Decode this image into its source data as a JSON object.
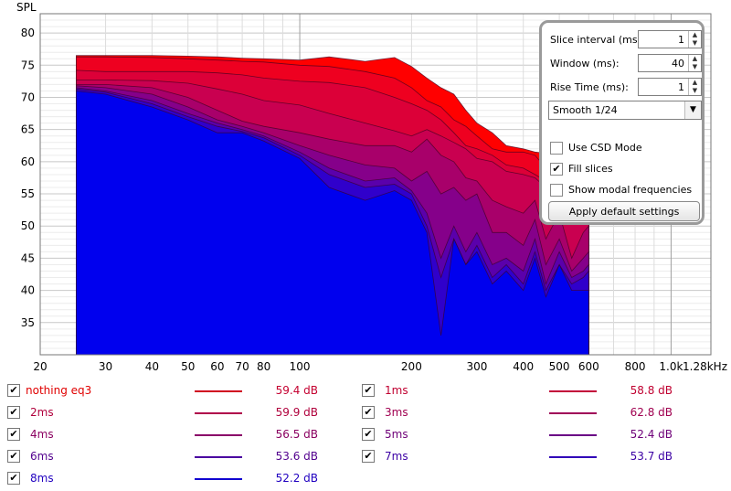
{
  "chart_data": {
    "type": "area",
    "ylabel": "SPL",
    "xlabel": "",
    "xscale": "log",
    "xlim": [
      20,
      1280
    ],
    "ylim": [
      30,
      83
    ],
    "grid": true,
    "x_ticks": [
      {
        "v": 20,
        "label": "20"
      },
      {
        "v": 30,
        "label": "30"
      },
      {
        "v": 40,
        "label": "40"
      },
      {
        "v": 50,
        "label": "50"
      },
      {
        "v": 60,
        "label": "60"
      },
      {
        "v": 70,
        "label": "70"
      },
      {
        "v": 80,
        "label": "80"
      },
      {
        "v": 100,
        "label": "100"
      },
      {
        "v": 200,
        "label": "200"
      },
      {
        "v": 300,
        "label": "300"
      },
      {
        "v": 400,
        "label": "400"
      },
      {
        "v": 500,
        "label": "500"
      },
      {
        "v": 600,
        "label": "600"
      },
      {
        "v": 800,
        "label": "800"
      },
      {
        "v": 1000,
        "label": "1.0k"
      },
      {
        "v": 1280,
        "label": "1.28kHz"
      }
    ],
    "y_ticks": [
      35,
      40,
      45,
      50,
      55,
      60,
      65,
      70,
      75,
      80
    ],
    "x": [
      25,
      30,
      40,
      50,
      60,
      70,
      80,
      100,
      120,
      150,
      180,
      200,
      220,
      240,
      260,
      280,
      300,
      330,
      360,
      400,
      430,
      460,
      500,
      540,
      580,
      600
    ],
    "series": [
      {
        "name": "nothing eq3",
        "color": "#ff0000",
        "values": [
          76.5,
          76.5,
          76.5,
          76.4,
          76.3,
          76.1,
          76,
          75.8,
          76.3,
          75.6,
          76.2,
          74.8,
          73,
          71.5,
          70.5,
          68,
          66,
          64.5,
          62.5,
          62,
          61.5,
          61.3,
          62.2,
          61.8,
          62,
          62
        ]
      },
      {
        "name": "1ms",
        "color": "#ee0020",
        "values": [
          76.3,
          76.3,
          76.2,
          76,
          75.8,
          75.6,
          75.5,
          75,
          74.8,
          74,
          73,
          71.5,
          69.5,
          68.5,
          66.5,
          65.5,
          64,
          62,
          61.5,
          61.5,
          61,
          59,
          62,
          57,
          61,
          61
        ]
      },
      {
        "name": "2ms",
        "color": "#dc0038",
        "values": [
          74.2,
          74,
          74,
          74,
          73.8,
          73.5,
          73,
          72.5,
          72.3,
          71.5,
          70,
          69,
          68,
          66.5,
          64.5,
          62.5,
          62,
          61,
          59.5,
          59,
          58,
          57,
          58.5,
          54,
          58.5,
          58
        ]
      },
      {
        "name": "3ms",
        "color": "#c90050",
        "values": [
          72.7,
          72.7,
          72.6,
          72.2,
          71.3,
          70.5,
          69.5,
          68.8,
          67.5,
          66,
          64.8,
          64,
          65,
          64,
          63,
          62,
          60.5,
          60,
          58.5,
          58,
          57.5,
          56,
          57,
          53,
          56.5,
          56
        ]
      },
      {
        "name": "4ms",
        "color": "#a8006a",
        "values": [
          72,
          72,
          71.5,
          70,
          68,
          66.3,
          65.5,
          64.5,
          63.5,
          62.5,
          62.5,
          61.5,
          63.5,
          61,
          60,
          57.5,
          57,
          54,
          53,
          52,
          54,
          48,
          52,
          45,
          49,
          50
        ]
      },
      {
        "name": "5ms",
        "color": "#85008a",
        "values": [
          71.8,
          71.5,
          70.5,
          68.5,
          66.5,
          65.5,
          64.5,
          62.5,
          61,
          59.5,
          59,
          57,
          58.5,
          55,
          56,
          54,
          55,
          49,
          49,
          47,
          51,
          44,
          48,
          43,
          45,
          46
        ]
      },
      {
        "name": "6ms",
        "color": "#5a00ab",
        "values": [
          71.5,
          71,
          69.5,
          67.5,
          66,
          65,
          64,
          61.5,
          59,
          57,
          57.5,
          55.5,
          52,
          45,
          50,
          46,
          49,
          44,
          45,
          43,
          48,
          41,
          46,
          42,
          43,
          44
        ]
      },
      {
        "name": "7ms",
        "color": "#3000cb",
        "values": [
          71.3,
          70.8,
          69,
          67,
          65.5,
          64.7,
          63.7,
          61,
          58,
          56,
          56.5,
          55,
          50,
          42,
          48,
          44,
          47,
          42,
          44,
          41,
          46,
          40,
          44,
          41,
          42,
          43
        ]
      },
      {
        "name": "8ms",
        "color": "#0000ee",
        "values": [
          71,
          70.5,
          68.5,
          66.5,
          64.5,
          64.5,
          63.2,
          60.5,
          56,
          54,
          55.5,
          54,
          49,
          33,
          48,
          44,
          46,
          41,
          43,
          40,
          45,
          39,
          44,
          40,
          40,
          40
        ]
      }
    ]
  },
  "settings": {
    "slice_interval_label": "Slice interval (ms):",
    "slice_interval_value": "1",
    "window_label": "Window (ms):",
    "window_value": "40",
    "rise_time_label": "Rise Time (ms):",
    "rise_time_value": "1",
    "smoothing_value": "Smooth 1/24",
    "use_csd_label": "Use CSD Mode",
    "use_csd_checked": false,
    "fill_slices_label": "Fill slices",
    "fill_slices_checked": true,
    "modal_label": "Show modal frequencies",
    "modal_checked": false,
    "apply_label": "Apply default settings"
  },
  "legend": [
    {
      "name": "nothing eq3",
      "value": "59.4 dB",
      "name_color": "#e00000",
      "line_color": "#d0001f",
      "value_color": "#c40030",
      "checked": true
    },
    {
      "name": "1ms",
      "value": "58.8 dB",
      "name_color": "#c00030",
      "line_color": "#c3003a",
      "value_color": "#c00030",
      "checked": true
    },
    {
      "name": "2ms",
      "value": "59.9 dB",
      "name_color": "#b0003c",
      "line_color": "#b0004a",
      "value_color": "#b0003c",
      "checked": true
    },
    {
      "name": "3ms",
      "value": "62.8 dB",
      "name_color": "#a00050",
      "line_color": "#a00058",
      "value_color": "#a00050",
      "checked": true
    },
    {
      "name": "4ms",
      "value": "56.5 dB",
      "name_color": "#8a0060",
      "line_color": "#8a0068",
      "value_color": "#8a0060",
      "checked": true
    },
    {
      "name": "5ms",
      "value": "52.4 dB",
      "name_color": "#6e0078",
      "line_color": "#6a0085",
      "value_color": "#6e0078",
      "checked": true
    },
    {
      "name": "6ms",
      "value": "53.6 dB",
      "name_color": "#52008e",
      "line_color": "#4a00a0",
      "value_color": "#52008e",
      "checked": true
    },
    {
      "name": "7ms",
      "value": "53.7 dB",
      "name_color": "#3c00a4",
      "line_color": "#3000b8",
      "value_color": "#3c00a4",
      "checked": true
    },
    {
      "name": "8ms",
      "value": "52.2 dB",
      "name_color": "#2000c0",
      "line_color": "#1000d0",
      "value_color": "#2000c0",
      "checked": true
    }
  ]
}
